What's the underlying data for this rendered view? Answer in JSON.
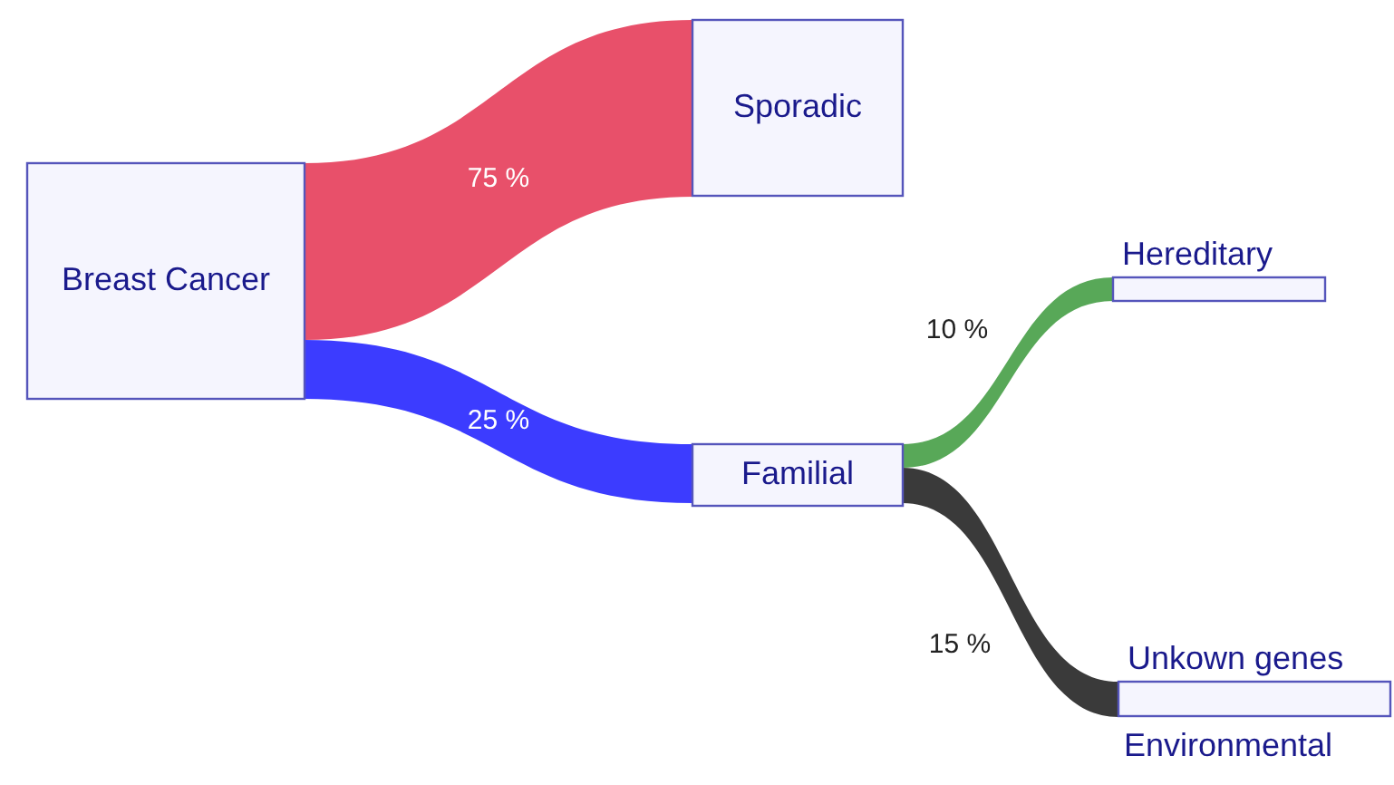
{
  "chart_data": {
    "type": "other",
    "categories": [
      "Sporadic",
      "Familial",
      "Hereditary",
      "Unkown genes"
    ],
    "values": [
      75,
      25,
      10,
      15
    ],
    "colors": [
      "#e8506a",
      "#3c3cff",
      "#58a858",
      "#3a3a3a"
    ],
    "value_labels": [
      "75 %",
      "25 %",
      "10 %",
      "15 %"
    ],
    "annotations": [
      "Breast Cancer",
      "Environmental"
    ]
  }
}
